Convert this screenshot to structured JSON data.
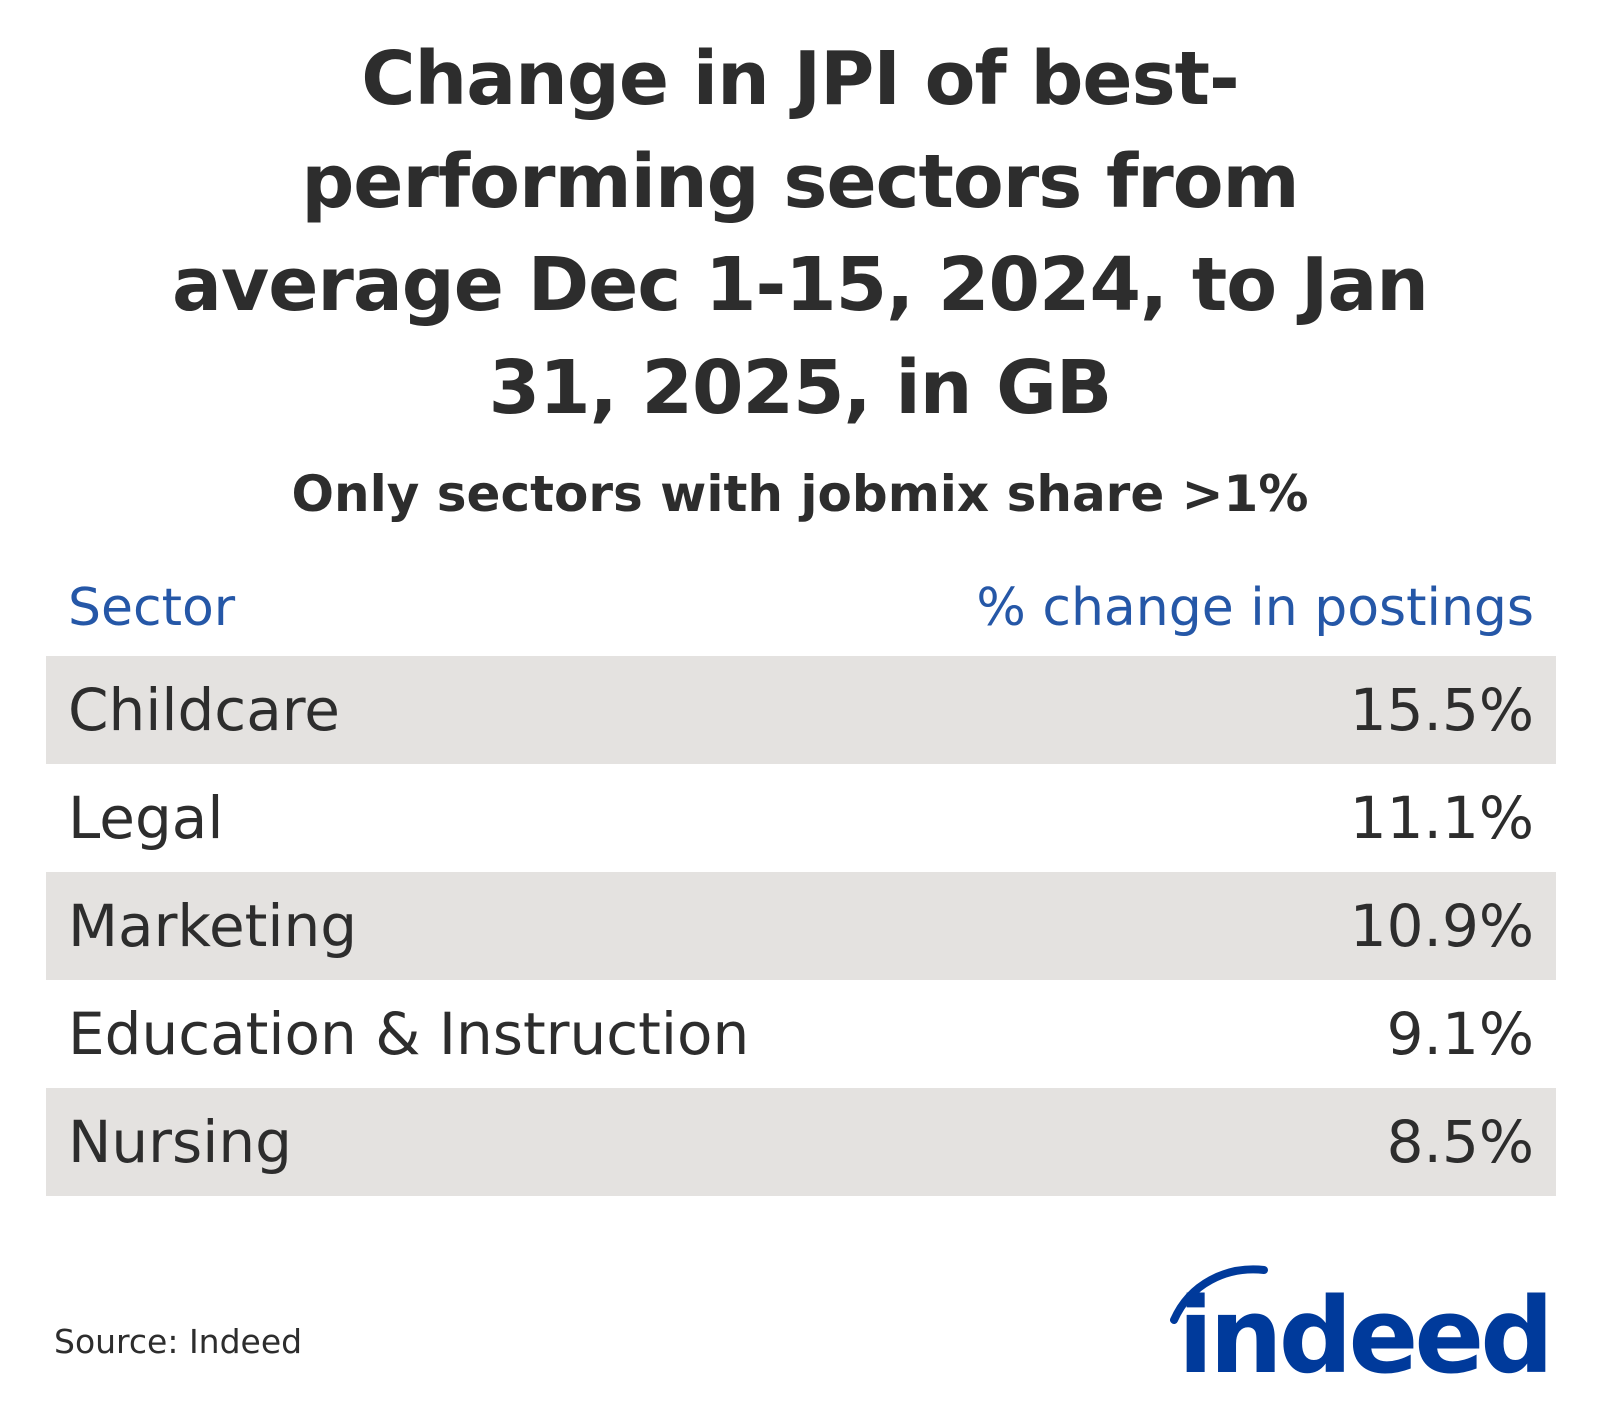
{
  "chart_data": {
    "type": "table",
    "title": "Change in JPI of best-performing sectors from average Dec 1-15, 2024, to Jan 31, 2025, in GB",
    "title_lines": [
      "Change in JPI of best-",
      "performing sectors from",
      "average Dec 1-15, 2024, to Jan",
      "31, 2025, in GB"
    ],
    "subtitle": "Only sectors with jobmix share >1%",
    "columns": [
      "Sector",
      "% change in postings"
    ],
    "rows": [
      {
        "sector": "Childcare",
        "value": "15.5%"
      },
      {
        "sector": "Legal",
        "value": "11.1%"
      },
      {
        "sector": "Marketing",
        "value": "10.9%"
      },
      {
        "sector": "Education & Instruction",
        "value": "9.1%"
      },
      {
        "sector": "Nursing",
        "value": "8.5%"
      }
    ],
    "values": [
      15.5,
      11.1,
      10.9,
      9.1,
      8.5
    ],
    "header_color": "#2557a7",
    "stripe_color": "#e4e2e0"
  },
  "source": "Source: Indeed",
  "logo": {
    "text": "indeed",
    "color": "#003a9b"
  }
}
